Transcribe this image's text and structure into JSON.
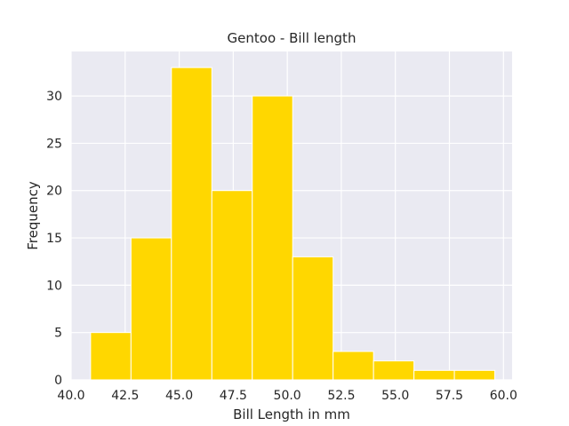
{
  "chart_data": {
    "type": "bar",
    "title": "Gentoo - Bill length",
    "xlabel": "Bill Length in mm",
    "ylabel": "Frequency",
    "bar_color": "#FFD700",
    "background_color": "#EAEAF2",
    "grid": true,
    "bins": [
      {
        "start": 40.9,
        "end": 42.77,
        "count": 5
      },
      {
        "start": 42.77,
        "end": 44.64,
        "count": 15
      },
      {
        "start": 44.64,
        "end": 46.51,
        "count": 33
      },
      {
        "start": 46.51,
        "end": 48.38,
        "count": 20
      },
      {
        "start": 48.38,
        "end": 50.25,
        "count": 30
      },
      {
        "start": 50.25,
        "end": 52.12,
        "count": 13
      },
      {
        "start": 52.12,
        "end": 53.99,
        "count": 3
      },
      {
        "start": 53.99,
        "end": 55.86,
        "count": 2
      },
      {
        "start": 55.86,
        "end": 57.73,
        "count": 1
      },
      {
        "start": 57.73,
        "end": 59.6,
        "count": 1
      }
    ],
    "xlim": [
      40.0,
      60.4
    ],
    "ylim": [
      0,
      34.7
    ],
    "xticks": [
      40.0,
      42.5,
      45.0,
      47.5,
      50.0,
      52.5,
      55.0,
      57.5,
      60.0
    ],
    "xtick_labels": [
      "40.0",
      "42.5",
      "45.0",
      "47.5",
      "50.0",
      "52.5",
      "55.0",
      "57.5",
      "60.0"
    ],
    "yticks": [
      0,
      5,
      10,
      15,
      20,
      25,
      30
    ],
    "ytick_labels": [
      "0",
      "5",
      "10",
      "15",
      "20",
      "25",
      "30"
    ]
  }
}
